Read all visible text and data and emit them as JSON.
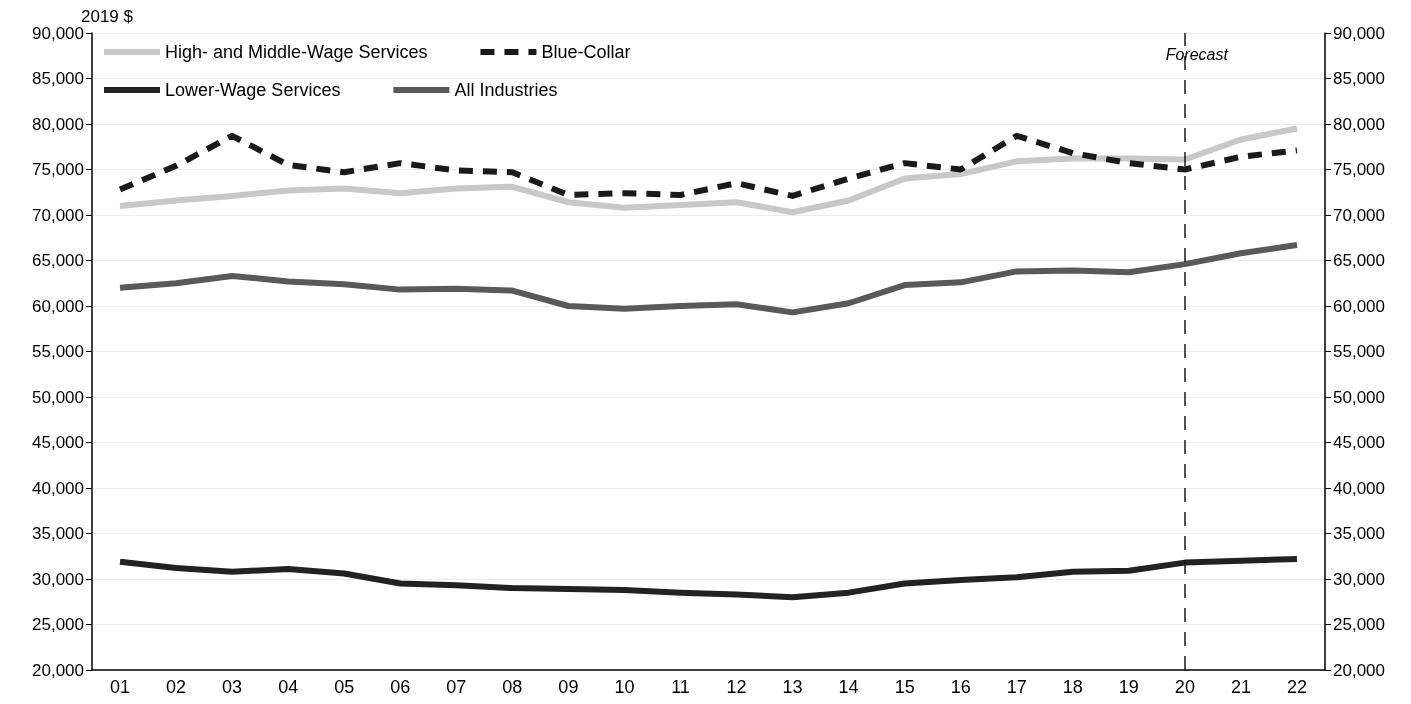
{
  "chart_data": {
    "type": "line",
    "ylabel": "2019 $",
    "categories": [
      "01",
      "02",
      "03",
      "04",
      "05",
      "06",
      "07",
      "08",
      "09",
      "10",
      "11",
      "12",
      "13",
      "14",
      "15",
      "16",
      "17",
      "18",
      "19",
      "20",
      "21",
      "22"
    ],
    "series": [
      {
        "name": "High- and Middle-Wage Services",
        "color": "#c8c8c8",
        "values": [
          71000,
          71600,
          72100,
          72700,
          72900,
          72400,
          72900,
          73100,
          71400,
          70800,
          71100,
          71400,
          70300,
          71600,
          74000,
          74500,
          75900,
          76200,
          76200,
          76100,
          78300,
          79500
        ]
      },
      {
        "name": "Blue-Collar",
        "color": "#1a1a1a",
        "line_style": "dashed",
        "values": [
          72800,
          75400,
          78700,
          75500,
          74700,
          75700,
          74900,
          74700,
          72200,
          72400,
          72200,
          73500,
          72100,
          74000,
          75700,
          75000,
          78700,
          76800,
          75700,
          75000,
          76400,
          77100
        ]
      },
      {
        "name": "Lower-Wage Services",
        "color": "#222222",
        "values": [
          31900,
          31200,
          30800,
          31100,
          30600,
          29500,
          29300,
          29000,
          28900,
          28800,
          28500,
          28300,
          28000,
          28500,
          29500,
          29900,
          30200,
          30800,
          30900,
          31800,
          32000,
          32200
        ]
      },
      {
        "name": "All Industries",
        "color": "#595959",
        "values": [
          62000,
          62500,
          63300,
          62700,
          62400,
          61800,
          61900,
          61700,
          60000,
          59700,
          60000,
          60200,
          59300,
          60300,
          62300,
          62600,
          63800,
          63900,
          63700,
          64600,
          65800,
          66700
        ]
      }
    ],
    "ylim": [
      20000,
      90000
    ],
    "yticks": [
      {
        "value": 20000,
        "label": "20,000"
      },
      {
        "value": 25000,
        "label": "25,000"
      },
      {
        "value": 30000,
        "label": "30,000"
      },
      {
        "value": 35000,
        "label": "35,000"
      },
      {
        "value": 40000,
        "label": "40,000"
      },
      {
        "value": 45000,
        "label": "45,000"
      },
      {
        "value": 50000,
        "label": "50,000"
      },
      {
        "value": 55000,
        "label": "55,000"
      },
      {
        "value": 60000,
        "label": "60,000"
      },
      {
        "value": 65000,
        "label": "65,000"
      },
      {
        "value": 70000,
        "label": "70,000"
      },
      {
        "value": 75000,
        "label": "75,000"
      },
      {
        "value": 80000,
        "label": "80,000"
      },
      {
        "value": 85000,
        "label": "85,000"
      },
      {
        "value": 90000,
        "label": "90,000"
      }
    ],
    "y2lim": [
      20000,
      90000
    ],
    "y2ticks": [
      {
        "value": 20000,
        "label": "20,000"
      },
      {
        "value": 25000,
        "label": "25,000"
      },
      {
        "value": 30000,
        "label": "30,000"
      },
      {
        "value": 35000,
        "label": "35,000"
      },
      {
        "value": 40000,
        "label": "40,000"
      },
      {
        "value": 45000,
        "label": "45,000"
      },
      {
        "value": 50000,
        "label": "50,000"
      },
      {
        "value": 55000,
        "label": "55,000"
      },
      {
        "value": 60000,
        "label": "60,000"
      },
      {
        "value": 65000,
        "label": "65,000"
      },
      {
        "value": 70000,
        "label": "70,000"
      },
      {
        "value": 75000,
        "label": "75,000"
      },
      {
        "value": 80000,
        "label": "80,000"
      },
      {
        "value": 85000,
        "label": "85,000"
      },
      {
        "value": 90000,
        "label": "90,000"
      }
    ],
    "ref_lines": [
      {
        "axis": "x",
        "value": "20",
        "label": "Forecast",
        "color": "#1a1a1a",
        "line_style": "dashed"
      }
    ],
    "grid": "y",
    "legend": "top left",
    "marker": "none",
    "line_style": "solid"
  }
}
